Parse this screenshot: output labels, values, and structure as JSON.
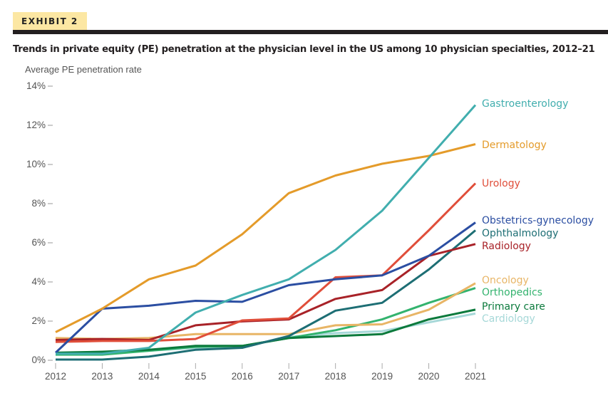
{
  "header": {
    "exhibit_label": "EXHIBIT 2",
    "title": "Trends in private equity (PE) penetration at the physician level in the US among 10 physician specialties, 2012–21"
  },
  "colors": {
    "tag_background": "#fce7a3",
    "rule": "#231f20"
  },
  "chart_data": {
    "type": "line",
    "title": "Trends in private equity (PE) penetration at the physician level in the US among 10 physician specialties, 2012–21",
    "ylabel": "Average PE penetration rate",
    "xlabel": "",
    "x": [
      2012,
      2013,
      2014,
      2015,
      2016,
      2017,
      2018,
      2019,
      2020,
      2021
    ],
    "ylim": [
      0,
      14
    ],
    "yticks": [
      0,
      2,
      4,
      6,
      8,
      10,
      12,
      14
    ],
    "ytick_labels": [
      "0%",
      "2%",
      "4%",
      "6%",
      "8%",
      "10%",
      "12%",
      "14%"
    ],
    "xtick_labels": [
      "2012",
      "2013",
      "2014",
      "2015",
      "2016",
      "2017",
      "2018",
      "2019",
      "2020",
      "2021"
    ],
    "grid": false,
    "legend_placement": "right (direct labels at line ends)",
    "series": [
      {
        "name": "Gastroenterology",
        "color": "#41aeae",
        "values": [
          0.3,
          0.3,
          0.6,
          2.4,
          3.3,
          4.1,
          5.6,
          7.6,
          10.3,
          13.0
        ]
      },
      {
        "name": "Dermatology",
        "color": "#e49b2a",
        "values": [
          1.4,
          2.6,
          4.1,
          4.8,
          6.4,
          8.5,
          9.4,
          10.0,
          10.4,
          11.0
        ]
      },
      {
        "name": "Urology",
        "color": "#e04e3a",
        "values": [
          0.9,
          0.95,
          0.95,
          1.05,
          2.0,
          2.1,
          4.2,
          4.3,
          6.6,
          9.0
        ]
      },
      {
        "name": "Obstetrics-gynecology",
        "color": "#2b4ea2",
        "values": [
          0.35,
          2.6,
          2.75,
          3.0,
          2.95,
          3.8,
          4.1,
          4.3,
          5.3,
          7.0
        ]
      },
      {
        "name": "Ophthalmology",
        "color": "#1d6e74",
        "values": [
          0.0,
          0.0,
          0.15,
          0.5,
          0.6,
          1.2,
          2.5,
          2.9,
          4.6,
          6.6
        ]
      },
      {
        "name": "Radiology",
        "color": "#a82228",
        "values": [
          1.0,
          1.05,
          1.0,
          1.75,
          1.95,
          2.05,
          3.1,
          3.55,
          5.3,
          5.9
        ]
      },
      {
        "name": "Oncology",
        "color": "#e8b566",
        "values": [
          1.1,
          1.05,
          1.1,
          1.3,
          1.3,
          1.3,
          1.75,
          1.8,
          2.55,
          3.9
        ]
      },
      {
        "name": "Orthopedics",
        "color": "#33b36e",
        "values": [
          0.25,
          0.25,
          0.45,
          0.65,
          0.7,
          1.1,
          1.5,
          2.05,
          2.9,
          3.65
        ]
      },
      {
        "name": "Primary care",
        "color": "#0b7a3c",
        "values": [
          0.35,
          0.4,
          0.5,
          0.7,
          0.7,
          1.1,
          1.2,
          1.3,
          2.05,
          2.55
        ]
      },
      {
        "name": "Cardiology",
        "color": "#a6d8d8",
        "values": [
          0.3,
          0.3,
          0.45,
          0.6,
          0.65,
          1.15,
          1.35,
          1.45,
          1.9,
          2.35
        ]
      }
    ]
  }
}
